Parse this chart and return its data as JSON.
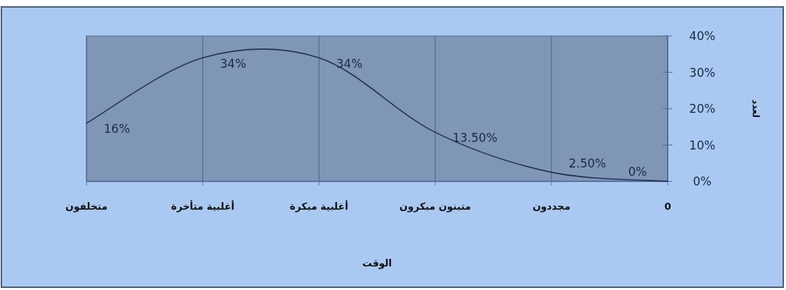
{
  "chart_data": {
    "type": "line",
    "xlabel": "الوقت",
    "ylabel": "لعدد",
    "categories": [
      "متخلفون",
      "أغلبية متأخرة",
      "أغلبية مبكرة",
      "متبنون مبكرون",
      "مجددون",
      "0"
    ],
    "series": [
      {
        "color": "#1f3150",
        "values": [
          16,
          34,
          34,
          13.5,
          2.5,
          0
        ],
        "value_labels": [
          "16%",
          "34%",
          "34%",
          "13.50%",
          "2.50%",
          "0%"
        ]
      }
    ],
    "ylim": [
      0,
      40
    ],
    "yticks": [
      {
        "value": 0,
        "label": "0%"
      },
      {
        "value": 10,
        "label": "10%"
      },
      {
        "value": 20,
        "label": "20%"
      },
      {
        "value": 30,
        "label": "30%"
      },
      {
        "value": 40,
        "label": "40%"
      }
    ],
    "grid": "x",
    "marker": "none",
    "line_style": "solid"
  }
}
